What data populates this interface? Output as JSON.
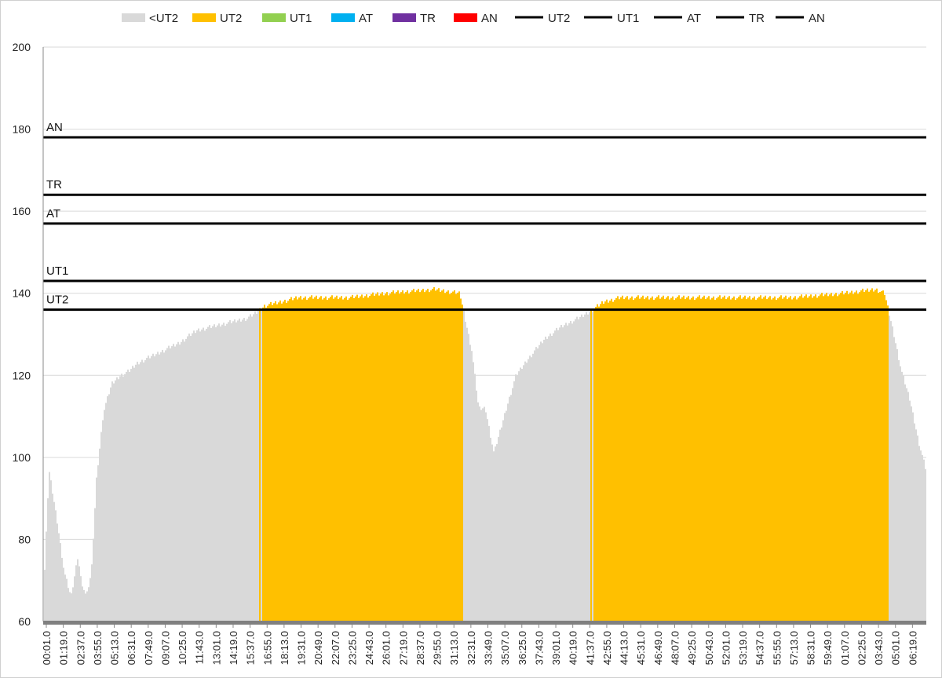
{
  "chart_data": {
    "type": "bar",
    "title": "",
    "xlabel": "",
    "ylabel": "",
    "ylim": [
      60,
      200
    ],
    "y_ticks": [
      60,
      80,
      100,
      120,
      140,
      160,
      180,
      200
    ],
    "x_ticks": [
      "00:01.0",
      "01:19.0",
      "02:37.0",
      "03:55.0",
      "05:13.0",
      "06:31.0",
      "07:49.0",
      "09:07.0",
      "10:25.0",
      "11:43.0",
      "13:01.0",
      "14:19.0",
      "15:37.0",
      "16:55.0",
      "18:13.0",
      "19:31.0",
      "20:49.0",
      "22:07.0",
      "23:25.0",
      "24:43.0",
      "26:01.0",
      "27:19.0",
      "28:37.0",
      "29:55.0",
      "31:13.0",
      "32:31.0",
      "33:49.0",
      "35:07.0",
      "36:25.0",
      "37:43.0",
      "39:01.0",
      "40:19.0",
      "41:37.0",
      "42:55.0",
      "44:13.0",
      "45:31.0",
      "46:49.0",
      "48:07.0",
      "49:25.0",
      "50:43.0",
      "52:01.0",
      "53:19.0",
      "54:37.0",
      "55:55.0",
      "57:13.0",
      "58:31.0",
      "59:49.0",
      "01:07.0",
      "02:25.0",
      "03:43.0",
      "05:01.0",
      "06:19.0"
    ],
    "grid": "horizontal",
    "legend_position": "top",
    "legend": [
      {
        "label": "<UT2",
        "kind": "box",
        "color": "#d9d9d9"
      },
      {
        "label": "UT2",
        "kind": "box",
        "color": "#ffc000"
      },
      {
        "label": "UT1",
        "kind": "box",
        "color": "#92d050"
      },
      {
        "label": "AT",
        "kind": "box",
        "color": "#00b0f0"
      },
      {
        "label": "TR",
        "kind": "box",
        "color": "#7030a0"
      },
      {
        "label": "AN",
        "kind": "box",
        "color": "#ff0000"
      },
      {
        "label": "UT2",
        "kind": "line",
        "color": "#000000"
      },
      {
        "label": "UT1",
        "kind": "line",
        "color": "#000000"
      },
      {
        "label": "AT",
        "kind": "line",
        "color": "#000000"
      },
      {
        "label": "TR",
        "kind": "line",
        "color": "#000000"
      },
      {
        "label": "AN",
        "kind": "line",
        "color": "#000000"
      }
    ],
    "thresholds": [
      {
        "name": "UT2",
        "value": 136
      },
      {
        "name": "UT1",
        "value": 143
      },
      {
        "name": "AT",
        "value": 157
      },
      {
        "name": "TR",
        "value": 164
      },
      {
        "name": "AN",
        "value": 178
      }
    ],
    "zone_colors": {
      "<UT2": "#d9d9d9",
      "UT2": "#ffc000",
      "UT1": "#92d050",
      "AT": "#00b0f0",
      "TR": "#7030a0",
      "AN": "#ff0000"
    },
    "series_profile": {
      "description_points_x_index_0_to_51": true,
      "x": [
        0,
        0.3,
        0.8,
        1.2,
        1.6,
        2.0,
        2.2,
        2.5,
        2.8,
        3.1,
        3.5,
        4.0,
        4.5,
        5.0,
        5.5,
        6.0,
        7.0,
        8.0,
        9.0,
        10.0,
        11.0,
        12.0,
        12.4,
        13.0,
        14.0,
        15.0,
        18.0,
        20.0,
        23.0,
        24.5,
        25.2,
        25.6,
        26.0,
        26.5,
        27.3,
        27.8,
        28.5,
        29.5,
        30.5,
        31.5,
        32.3,
        33.0,
        34.0,
        37.0,
        40.0,
        44.0,
        47.0,
        49.0,
        49.5,
        50.0,
        50.5,
        51.0,
        51.5,
        52.0
      ],
      "y": [
        68,
        97,
        84,
        72,
        66,
        76,
        70,
        66,
        72,
        95,
        111,
        118,
        120,
        121,
        123,
        124,
        126,
        128,
        131,
        132,
        133,
        134,
        135,
        137,
        138,
        139,
        139,
        140,
        141,
        140,
        126,
        112,
        112,
        101,
        113,
        120,
        124,
        129,
        132,
        134,
        136,
        138,
        139,
        139,
        139,
        139,
        140,
        141,
        140,
        131,
        121,
        114,
        104,
        96
      ]
    }
  }
}
